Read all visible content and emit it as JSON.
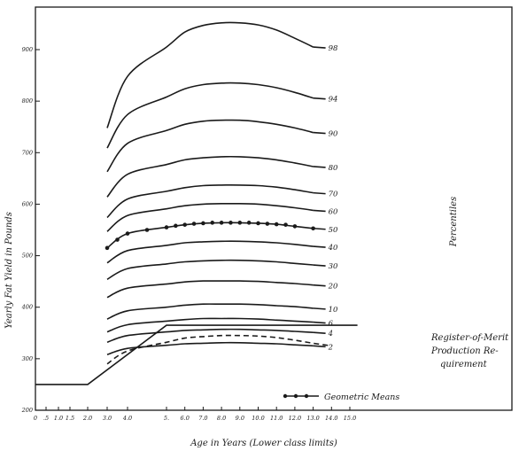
{
  "chart_data": {
    "type": "line",
    "title": "",
    "xlabel": "Age in Years (Lower class limits)",
    "ylabel": "Yearly Fat Yield in Pounds",
    "right_label": "Percentiles",
    "xlim": [
      0,
      16
    ],
    "ylim": [
      200,
      1000
    ],
    "x_tick_labels": [
      "0",
      ".5",
      "1.0",
      "1.5",
      "2.0",
      "3.0",
      "4.0",
      "5.",
      "6.0",
      "7.0",
      "8.0",
      "9.0",
      "10.0",
      "11.0",
      "12.0",
      "13.0",
      "14.0",
      "15.0"
    ],
    "y_tick_labels": [
      "200",
      "300",
      "400",
      "500",
      "600",
      "700",
      "800",
      "900"
    ],
    "x": [
      3,
      4,
      5,
      6,
      7,
      8,
      9,
      10,
      11,
      12,
      13
    ],
    "series": [
      {
        "name": "98",
        "values": [
          748,
          848,
          905,
          934,
          947,
          952,
          952,
          948,
          938,
          922,
          905
        ]
      },
      {
        "name": "94",
        "values": [
          709,
          774,
          808,
          824,
          832,
          835,
          835,
          832,
          826,
          817,
          806
        ]
      },
      {
        "name": "90",
        "values": [
          663,
          718,
          743,
          755,
          761,
          763,
          763,
          760,
          755,
          748,
          739
        ]
      },
      {
        "name": "80",
        "values": [
          614,
          658,
          677,
          686,
          690,
          692,
          692,
          690,
          686,
          680,
          673
        ]
      },
      {
        "name": "70",
        "values": [
          574,
          610,
          625,
          632,
          636,
          637,
          637,
          636,
          633,
          628,
          622
        ]
      },
      {
        "name": "60",
        "values": [
          547,
          578,
          591,
          597,
          600,
          601,
          601,
          600,
          597,
          593,
          588
        ]
      },
      {
        "name": "50",
        "values": [
          515,
          543,
          555,
          560,
          563,
          564,
          564,
          563,
          561,
          557,
          553
        ]
      },
      {
        "name": "40",
        "values": [
          486,
          510,
          520,
          525,
          527,
          528,
          528,
          527,
          525,
          522,
          518
        ]
      },
      {
        "name": "30",
        "values": [
          454,
          475,
          484,
          488,
          490,
          491,
          491,
          490,
          488,
          485,
          482
        ]
      },
      {
        "name": "20",
        "values": [
          419,
          437,
          445,
          449,
          451,
          451,
          451,
          450,
          448,
          446,
          443
        ]
      },
      {
        "name": "10",
        "values": [
          377,
          393,
          400,
          404,
          406,
          406,
          406,
          405,
          403,
          401,
          398
        ]
      },
      {
        "name": "6",
        "values": [
          352,
          366,
          373,
          376,
          378,
          378,
          378,
          377,
          375,
          373,
          371
        ]
      },
      {
        "name": "4",
        "values": [
          332,
          345,
          352,
          355,
          356,
          357,
          357,
          356,
          355,
          353,
          351
        ]
      },
      {
        "name": "2",
        "values": [
          308,
          320,
          326,
          329,
          330,
          331,
          331,
          330,
          329,
          327,
          325
        ]
      }
    ],
    "geometric_means": {
      "name": "Geometric Means",
      "x": [
        3.0,
        3.5,
        4.0,
        4.5,
        5.0,
        5.5,
        6.0,
        6.5,
        7.0,
        7.5,
        8.0,
        8.5,
        9.0,
        9.5,
        10.0,
        10.5,
        11.0,
        11.5,
        12.0,
        13.0
      ],
      "y": [
        515,
        531,
        543,
        550,
        555,
        558,
        560,
        562,
        563,
        564,
        564,
        564,
        564,
        564,
        563,
        562,
        561,
        560,
        557,
        553
      ]
    },
    "register_of_merit": {
      "name": "Register-of-Merit Production Requirement",
      "x": [
        0,
        1.5,
        2.0,
        5.0,
        13.0
      ],
      "y": [
        250,
        250,
        250,
        365,
        365
      ]
    },
    "dashed_curve": {
      "x": [
        3.0,
        4.0,
        5.0,
        6.0,
        7.0,
        8.0,
        9.0,
        10.0,
        11.0,
        12.0,
        13.0,
        14.0
      ],
      "y": [
        290,
        315,
        332,
        340,
        343,
        345,
        345,
        344,
        341,
        336,
        330,
        325
      ]
    },
    "legend": {
      "label": "Geometric Means",
      "placement": "bottom-right"
    },
    "grid": false,
    "annotations": [
      "Register-of-Merit",
      "Production Re-",
      "quirement"
    ]
  }
}
